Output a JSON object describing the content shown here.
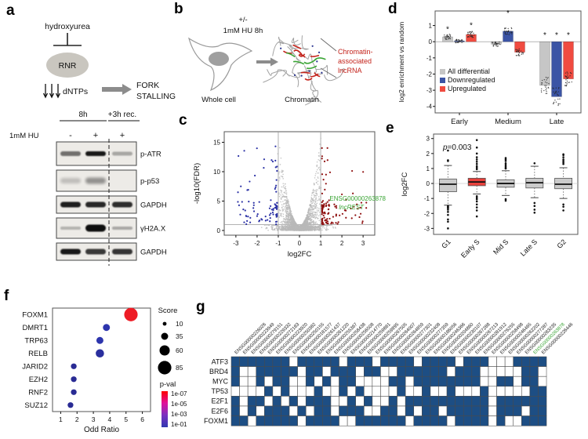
{
  "panel_letters": {
    "a": "a",
    "b": "b",
    "c": "c",
    "d": "d",
    "e": "e",
    "f": "f",
    "g": "g"
  },
  "panel_a": {
    "label": "a",
    "pathway": {
      "inhibitor": "hydroxyurea",
      "enzyme": "RNR",
      "dntps": "dNTPs",
      "outcome": [
        "FORK",
        "STALLING"
      ]
    },
    "blot": {
      "treatment": "1mM HU",
      "group_labels": [
        "8h",
        "+3h rec."
      ],
      "lane_signs": [
        "-",
        "+",
        "+"
      ],
      "targets": [
        "p-ATR",
        "p-p53",
        "GAPDH",
        "γH2A.X",
        "GAPDH"
      ],
      "band_intensities": [
        [
          0.55,
          0.95,
          0.3
        ],
        [
          0.2,
          0.4,
          0.05
        ],
        [
          0.92,
          0.88,
          0.85
        ],
        [
          0.25,
          1.0,
          0.3
        ],
        [
          0.95,
          0.8,
          0.82
        ]
      ],
      "band_heights": [
        [
          6,
          6,
          5
        ],
        [
          7,
          8,
          6
        ],
        [
          7,
          7,
          7
        ],
        [
          4,
          9,
          4
        ],
        [
          7,
          7,
          7
        ]
      ]
    }
  },
  "panel_b": {
    "label": "b",
    "condition": [
      "+/-",
      "1mM HU 8h"
    ],
    "whole_cell_label": "Whole cell",
    "chromatin_label": "Chromatin",
    "annotation": [
      "Chromatin-",
      "associated",
      "lncRNA"
    ],
    "colors": {
      "lncrna_red": "#c4231b",
      "dna_green": "#3aa535"
    }
  },
  "chart_data": [
    {
      "panel": "c",
      "type": "scatter",
      "subtype": "volcano",
      "xlabel": "log2FC",
      "ylabel": "-log10(FDR)",
      "xlim": [
        -3.55,
        3.55
      ],
      "ylim": [
        -0.8,
        16.8
      ],
      "xticks": [
        -3,
        -2,
        -1,
        0,
        1,
        2,
        3
      ],
      "yticks": [
        0,
        5,
        10,
        15
      ],
      "thresholds": {
        "x": [
          -1,
          1
        ],
        "y": 1
      },
      "points_approx": {
        "nonsignificant": 2600,
        "downregulated": 85,
        "upregulated": 110
      },
      "colors": {
        "ns": "#b9b9b9",
        "down": "#2b31a5",
        "up": "#8f1010",
        "highlight": "#3aa535"
      },
      "highlight_gene": {
        "id": "ENSG00000263878",
        "name": "lncREST",
        "x": 1.42,
        "y": 5.1
      }
    },
    {
      "panel": "d",
      "type": "bar",
      "ylabel": "log2 enrichment vs random",
      "categories": [
        "Early",
        "Medium",
        "Late"
      ],
      "series": [
        {
          "name": "All differential",
          "color": "#c6c6c6",
          "values": [
            0.3,
            -0.15,
            -2.7
          ]
        },
        {
          "name": "Downregulated",
          "color": "#3b54a5",
          "values": [
            0.05,
            0.65,
            -3.4
          ]
        },
        {
          "name": "Upregulated",
          "color": "#f04b40",
          "values": [
            0.45,
            -0.65,
            -2.3
          ]
        }
      ],
      "ylim": [
        -4.4,
        1.9
      ],
      "yticks": [
        1,
        0,
        -1,
        -2,
        -3,
        -4
      ],
      "significance": [
        {
          "category": "Early",
          "series": "All differential",
          "star_y": 0.62
        },
        {
          "category": "Early",
          "series": "Upregulated",
          "star_y": 0.85
        },
        {
          "category": "Medium",
          "series": "Downregulated",
          "star_y": 1.62
        },
        {
          "category": "Late",
          "series": "All differential",
          "star_y": 0.25
        },
        {
          "category": "Late",
          "series": "Downregulated",
          "star_y": 0.25
        },
        {
          "category": "Late",
          "series": "Upregulated",
          "star_y": 0.25
        }
      ],
      "legend_position": "inside-bottom-left",
      "jitter_points": true
    },
    {
      "panel": "e",
      "type": "box",
      "ylabel": "log2FC",
      "annotation": "p=0.003",
      "ylim": [
        -3.4,
        3.3
      ],
      "yticks": [
        -3,
        -2,
        -1,
        0,
        1,
        2,
        3
      ],
      "categories": [
        "G1",
        "Early S",
        "Mid S",
        "Late S",
        "G2"
      ],
      "boxes": [
        {
          "label": "G1",
          "color": "#cbcbcb",
          "low": -1.45,
          "q1": -0.55,
          "median": -0.05,
          "q3": 0.3,
          "high": 1.2,
          "outliers": [
            1.5,
            1.55,
            2.2,
            -1.5,
            -1.55,
            -1.6,
            -1.65,
            -1.75,
            -1.9,
            -2.1,
            -2.4,
            -2.55,
            -3.0
          ]
        },
        {
          "label": "Early S",
          "color": "#e8413c",
          "low": -0.7,
          "q1": -0.15,
          "median": 0.1,
          "q3": 0.35,
          "high": 0.8,
          "outliers": [
            0.95,
            1.05,
            1.15,
            1.3,
            1.45,
            1.6,
            1.75,
            2.0,
            2.4,
            2.9,
            -0.85,
            -0.95,
            -1.05,
            -1.2,
            -1.4,
            -1.6,
            -1.8,
            -2.2
          ]
        },
        {
          "label": "Mid S",
          "color": "#cbcbcb",
          "low": -0.8,
          "q1": -0.25,
          "median": 0.0,
          "q3": 0.25,
          "high": 0.85,
          "outliers": [
            1.0,
            1.05,
            1.15,
            1.25,
            1.35,
            1.5,
            1.6,
            1.7,
            -1.05,
            -1.15
          ]
        },
        {
          "label": "Late S",
          "color": "#cbcbcb",
          "low": -0.95,
          "q1": -0.3,
          "median": 0.05,
          "q3": 0.35,
          "high": 1.15,
          "outliers": [
            1.35,
            -1.3,
            -1.5,
            -1.75,
            -1.95
          ]
        },
        {
          "label": "G2",
          "color": "#cbcbcb",
          "low": -1.0,
          "q1": -0.35,
          "median": -0.05,
          "q3": 0.35,
          "high": 1.05,
          "outliers": [
            1.3,
            1.4,
            1.5,
            1.6,
            1.75,
            1.9,
            1.95,
            -1.4,
            -1.55,
            -1.8
          ]
        }
      ]
    },
    {
      "panel": "f",
      "type": "scatter",
      "subtype": "dotplot",
      "xlabel": "Odd Ratio",
      "xlim": [
        0.5,
        6.5
      ],
      "xticks": [
        1,
        2,
        3,
        4,
        5,
        6
      ],
      "rows": [
        {
          "label": "FOXM1",
          "x": 5.3,
          "score": 85,
          "color": "#ee1c25"
        },
        {
          "label": "DMRT1",
          "x": 3.8,
          "score": 35,
          "color": "#2d35ad"
        },
        {
          "label": "TRP63",
          "x": 3.4,
          "score": 35,
          "color": "#2d35ad"
        },
        {
          "label": "RELB",
          "x": 3.4,
          "score": 45,
          "color": "#2a2f9e"
        },
        {
          "label": "JARID2",
          "x": 1.8,
          "score": 25,
          "color": "#292b94"
        },
        {
          "label": "EZH2",
          "x": 1.8,
          "score": 25,
          "color": "#292b94"
        },
        {
          "label": "RNF2",
          "x": 1.8,
          "score": 25,
          "color": "#292b94"
        },
        {
          "label": "SUZ12",
          "x": 1.6,
          "score": 25,
          "color": "#292b94"
        }
      ],
      "legend_score": {
        "title": "Score",
        "sizes": [
          10,
          35,
          60,
          85
        ]
      },
      "legend_pval": {
        "title": "p-val",
        "labels": [
          "1e-07",
          "1e-05",
          "1e-03",
          "1e-01"
        ],
        "colors": [
          "#fe0000",
          "#e0119b",
          "#7a30c0",
          "#3038b0"
        ]
      }
    },
    {
      "panel": "g",
      "type": "heatmap",
      "rows": [
        "ATF3",
        "BRD4",
        "MYC",
        "TP53",
        "E2F1",
        "E2F6",
        "FOXM1"
      ],
      "columns": [
        "ENSG00000226026",
        "ENSG00000223949",
        "ENSG00000279151",
        "ENSG00000229332",
        "ENSG00000272183",
        "ENSG00000223920",
        "ENSG00000250382",
        "ENSG00000250155",
        "ENSG00000181577",
        "ENSG00000261437",
        "ENSG00000261220",
        "ENSG00000255367",
        "ENSG00000258438",
        "ENSG00000256508",
        "ENSG00000214770",
        "ENSG00000259881",
        "ENSG00000259895",
        "ENSG00000267505",
        "ENSG00000264007",
        "ENSG00000264859",
        "ENSG00000277301",
        "ENSG00000232408",
        "ENSG00000277359",
        "ENSG00000186056",
        "ENSG00000246366",
        "ENSG00000204860",
        "ENSG00000230107",
        "ENSG00000267288",
        "ENSG00000267213",
        "ENSG00000281912",
        "ENSG00000276255",
        "ENSG00000258498",
        "ENSG00000246465",
        "ENSG00000262202",
        "ENSG00000277287",
        "ENSG00000283235",
        "ENSG00000263878",
        "ENSG00000226446"
      ],
      "highlight_column": "ENSG00000263878",
      "highlight_color": "#3aa535",
      "cell_on_color": "#1d4e84",
      "cell_off_color": "#ffffff",
      "matrix": [
        [
          1,
          1,
          1,
          1,
          1,
          1,
          1,
          0,
          1,
          1,
          1,
          1,
          1,
          0,
          1,
          1,
          1,
          0,
          1,
          1,
          1,
          1,
          0,
          1,
          1,
          1,
          1,
          0,
          1,
          1,
          1,
          0,
          0,
          0,
          1,
          1,
          1,
          1
        ],
        [
          1,
          0,
          0,
          1,
          1,
          1,
          1,
          1,
          0,
          1,
          1,
          0,
          1,
          1,
          1,
          0,
          1,
          1,
          0,
          0,
          1,
          1,
          1,
          1,
          1,
          1,
          0,
          1,
          1,
          1,
          0,
          0,
          0,
          0,
          0,
          1,
          1,
          0
        ],
        [
          1,
          0,
          0,
          1,
          0,
          1,
          1,
          0,
          0,
          1,
          0,
          1,
          0,
          1,
          1,
          0,
          0,
          0,
          0,
          1,
          1,
          0,
          1,
          1,
          1,
          1,
          1,
          1,
          1,
          1,
          0,
          0,
          1,
          1,
          0,
          1,
          1,
          0
        ],
        [
          0,
          0,
          0,
          0,
          1,
          0,
          1,
          0,
          0,
          0,
          1,
          0,
          0,
          1,
          0,
          1,
          0,
          0,
          0,
          0,
          1,
          0,
          0,
          1,
          0,
          0,
          1,
          0,
          0,
          0,
          1,
          0,
          0,
          0,
          0,
          0,
          1,
          1
        ],
        [
          1,
          0,
          1,
          1,
          0,
          1,
          0,
          1,
          0,
          1,
          1,
          1,
          0,
          0,
          1,
          0,
          1,
          0,
          0,
          1,
          0,
          1,
          1,
          1,
          1,
          1,
          1,
          1,
          1,
          1,
          1,
          0,
          1,
          1,
          1,
          1,
          1,
          1
        ],
        [
          1,
          0,
          1,
          0,
          1,
          1,
          1,
          0,
          1,
          0,
          1,
          1,
          0,
          1,
          1,
          1,
          0,
          0,
          1,
          1,
          0,
          1,
          0,
          1,
          1,
          0,
          1,
          1,
          1,
          1,
          1,
          0,
          1,
          1,
          1,
          0,
          1,
          1
        ],
        [
          1,
          1,
          0,
          1,
          1,
          1,
          1,
          1,
          0,
          1,
          1,
          1,
          1,
          0,
          0,
          1,
          1,
          1,
          1,
          1,
          1,
          0,
          1,
          1,
          1,
          1,
          0,
          1,
          1,
          1,
          1,
          0,
          1,
          0,
          0,
          1,
          1,
          1
        ]
      ]
    }
  ]
}
